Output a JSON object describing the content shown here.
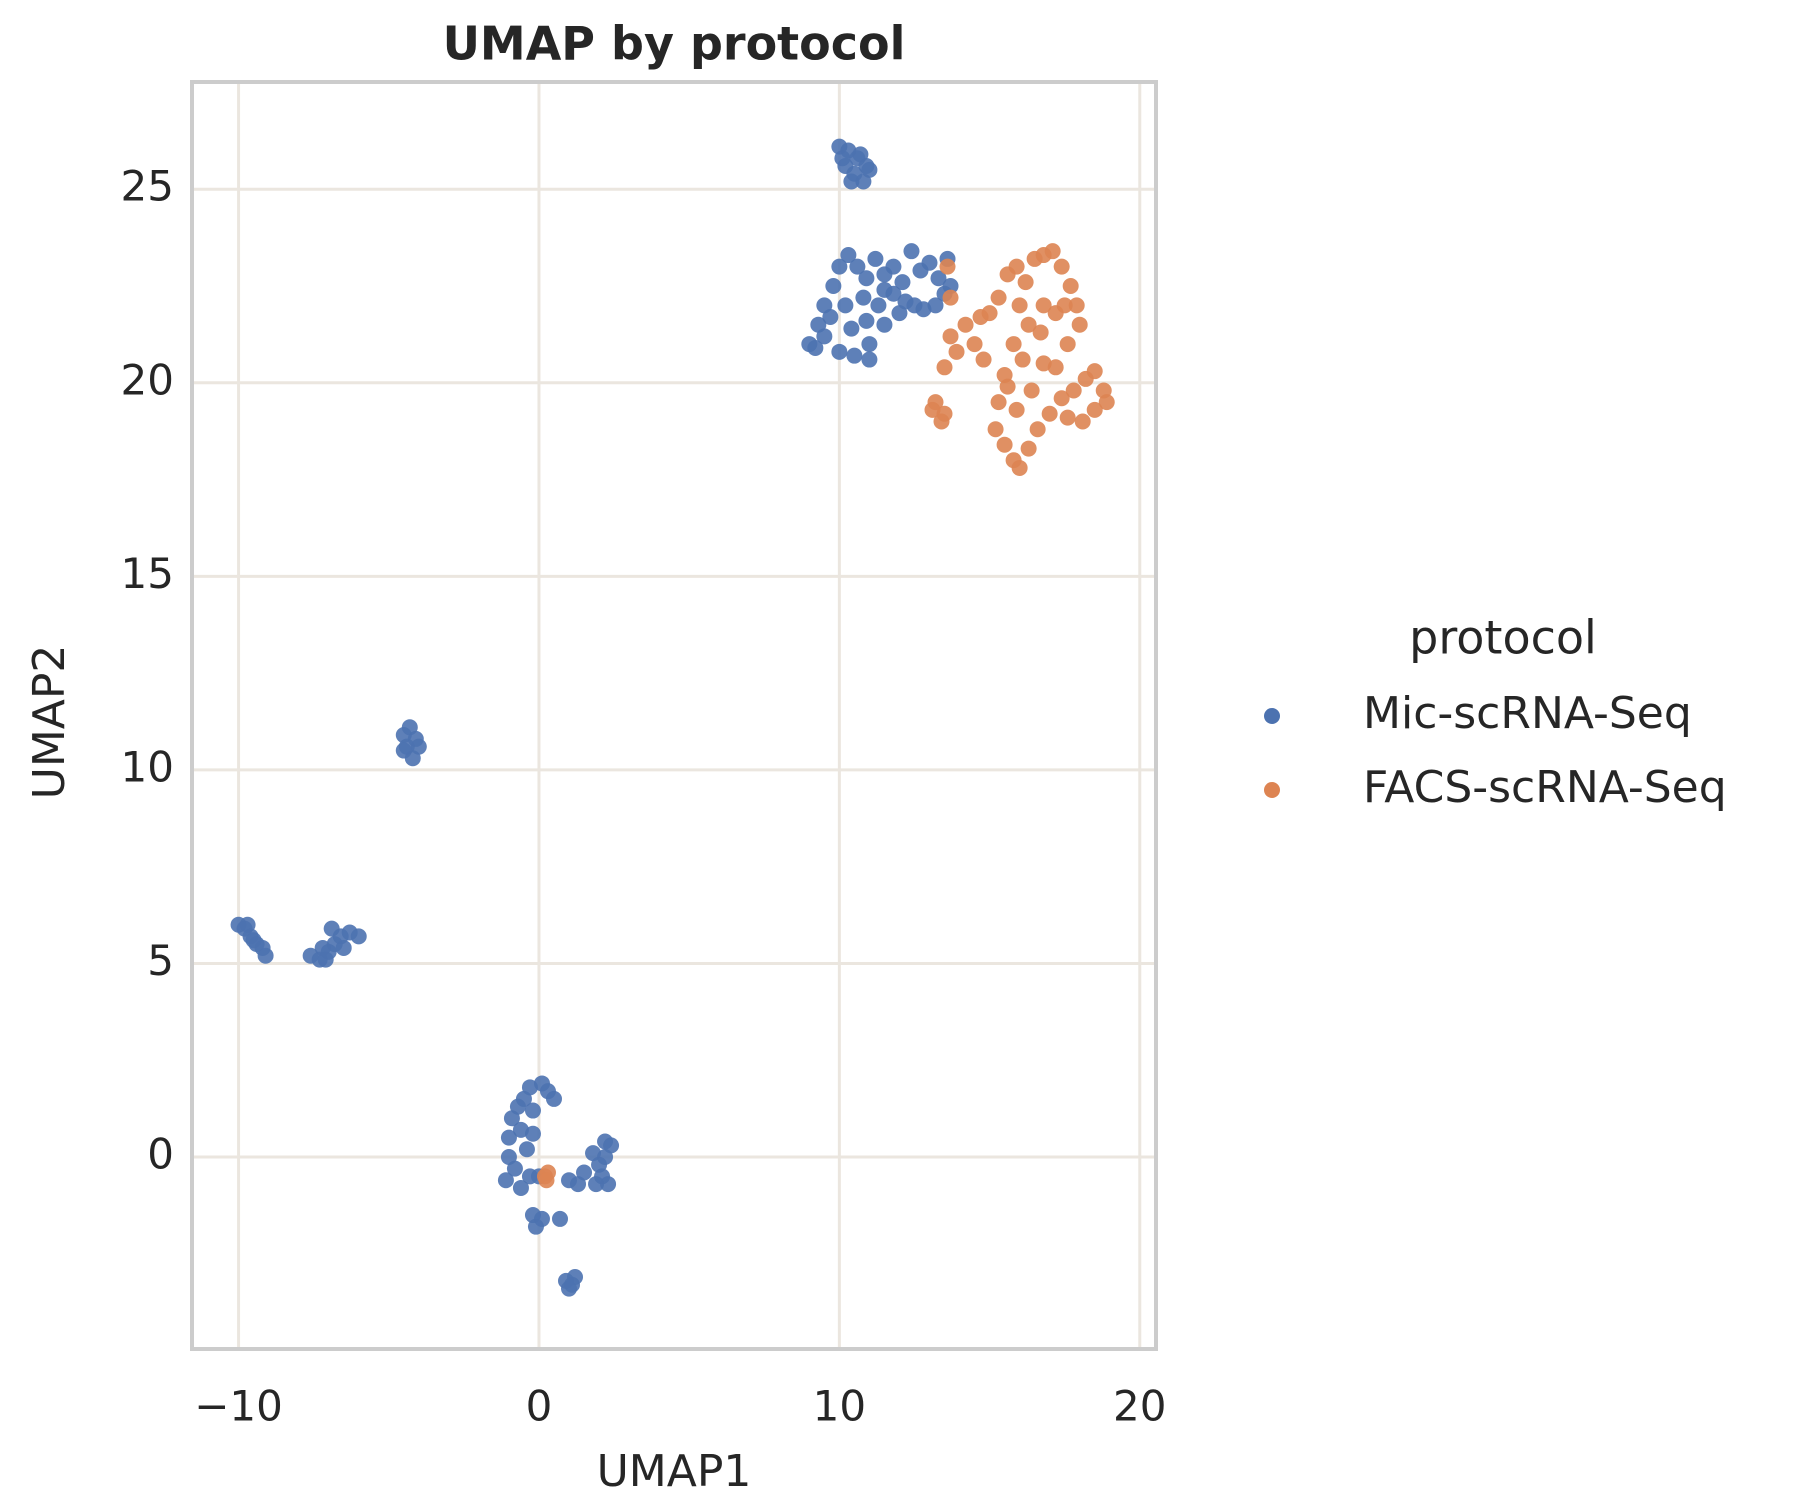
{
  "chart_data": {
    "type": "scatter",
    "title": "UMAP by protocol",
    "x_label": "UMAP1",
    "y_label": "UMAP2",
    "legend_title": "protocol",
    "legend": "right",
    "grid": true,
    "xlim": [
      -11.55,
      20.54
    ],
    "ylim": [
      -4.96,
      27.77
    ],
    "xticks": [
      {
        "value": -10,
        "label": "−10"
      },
      0,
      10,
      20
    ],
    "yticks": [
      0,
      5,
      10,
      15,
      20,
      25
    ],
    "series": [
      {
        "name": "Mic-scRNA-Seq",
        "color": "#4c72b0",
        "x": [
          10.0,
          10.3,
          10.6,
          10.9,
          10.2,
          10.5,
          10.8,
          11.0,
          10.1,
          10.7,
          10.4,
          9.0,
          9.3,
          9.5,
          9.8,
          10.0,
          10.3,
          10.6,
          10.9,
          11.2,
          11.5,
          11.8,
          12.1,
          12.4,
          12.7,
          13.0,
          13.3,
          13.6,
          13.5,
          12.5,
          12.0,
          11.5,
          11.0,
          10.5,
          10.0,
          9.5,
          10.2,
          10.8,
          11.3,
          11.8,
          12.8,
          9.7,
          10.4,
          10.9,
          11.5,
          12.2,
          13.2,
          11.0,
          9.2,
          13.7,
          -4.5,
          -4.3,
          -4.1,
          -4.4,
          -4.2,
          -4.0,
          -4.5,
          -10.0,
          -9.8,
          -9.6,
          -9.4,
          -9.2,
          -9.1,
          -9.7,
          -9.5,
          -7.6,
          -7.3,
          -7.0,
          -6.8,
          -6.6,
          -6.3,
          -6.0,
          -6.9,
          -7.2,
          -6.5,
          -7.1,
          -1.1,
          -1.0,
          -1.0,
          -0.9,
          -0.7,
          -0.5,
          -0.3,
          0.1,
          0.3,
          -0.2,
          -0.6,
          -0.4,
          -0.8,
          -0.3,
          -0.6,
          0.0,
          -0.2,
          0.5,
          -0.1,
          0.1,
          -0.2,
          0.7,
          1.0,
          1.3,
          1.5,
          1.8,
          2.0,
          2.2,
          2.4,
          2.3,
          2.1,
          1.9,
          2.2,
          0.9,
          1.1,
          1.2,
          1.0
        ],
        "values": [
          26.1,
          26.0,
          25.8,
          25.6,
          25.6,
          25.4,
          25.2,
          25.5,
          25.8,
          25.9,
          25.2,
          21.0,
          21.5,
          22.0,
          22.5,
          23.0,
          23.3,
          23.0,
          22.7,
          23.2,
          22.8,
          23.0,
          22.6,
          23.4,
          22.9,
          23.1,
          22.7,
          23.2,
          22.3,
          22.0,
          21.8,
          21.5,
          21.0,
          20.7,
          20.8,
          21.2,
          22.0,
          22.2,
          22.0,
          22.3,
          21.9,
          21.7,
          21.4,
          21.6,
          22.4,
          22.1,
          22.0,
          20.6,
          20.9,
          22.5,
          10.9,
          11.1,
          10.8,
          10.6,
          10.3,
          10.6,
          10.5,
          6.0,
          5.9,
          5.7,
          5.5,
          5.4,
          5.2,
          6.0,
          5.6,
          5.2,
          5.1,
          5.3,
          5.5,
          5.7,
          5.8,
          5.7,
          5.9,
          5.4,
          5.4,
          5.1,
          -0.6,
          0.0,
          0.5,
          1.0,
          1.3,
          1.5,
          1.8,
          1.9,
          1.7,
          1.2,
          0.7,
          0.2,
          -0.3,
          -0.5,
          -0.8,
          -0.5,
          0.6,
          1.5,
          -1.8,
          -1.6,
          -1.5,
          -1.6,
          -0.6,
          -0.7,
          -0.4,
          0.1,
          -0.2,
          0.4,
          0.3,
          -0.7,
          -0.5,
          -0.7,
          0.0,
          -3.2,
          -3.3,
          -3.1,
          -3.4
        ]
      },
      {
        "name": "FACS-scRNA-Seq",
        "color": "#dd8452",
        "x": [
          0.2,
          0.3,
          0.25,
          13.5,
          13.7,
          13.9,
          14.2,
          14.5,
          14.8,
          15.0,
          15.3,
          15.6,
          15.9,
          16.2,
          16.5,
          16.8,
          17.1,
          17.4,
          17.7,
          17.9,
          18.0,
          17.6,
          17.2,
          16.8,
          16.3,
          15.8,
          15.5,
          15.3,
          15.2,
          15.5,
          15.8,
          16.0,
          16.3,
          16.6,
          17.0,
          17.4,
          17.8,
          18.2,
          18.5,
          18.8,
          18.9,
          18.5,
          18.1,
          17.6,
          17.2,
          16.8,
          16.4,
          15.9,
          15.6,
          16.1,
          16.7,
          17.5,
          16.0,
          14.7,
          13.7,
          13.6,
          13.1,
          13.4,
          13.2,
          13.5
        ],
        "values": [
          -0.5,
          -0.4,
          -0.6,
          20.4,
          21.2,
          20.8,
          21.5,
          21.0,
          20.6,
          21.8,
          22.2,
          22.8,
          23.0,
          22.6,
          23.2,
          23.3,
          23.4,
          23.0,
          22.5,
          22.0,
          21.5,
          21.0,
          21.8,
          22.0,
          21.5,
          21.0,
          20.2,
          19.5,
          18.8,
          18.4,
          18.0,
          17.8,
          18.3,
          18.8,
          19.2,
          19.6,
          19.8,
          20.1,
          20.3,
          19.8,
          19.5,
          19.3,
          19.0,
          19.1,
          20.4,
          20.5,
          19.8,
          19.3,
          19.9,
          20.6,
          21.3,
          22.0,
          22.0,
          21.7,
          22.2,
          23.0,
          19.3,
          19.0,
          19.5,
          19.2
        ]
      }
    ]
  }
}
